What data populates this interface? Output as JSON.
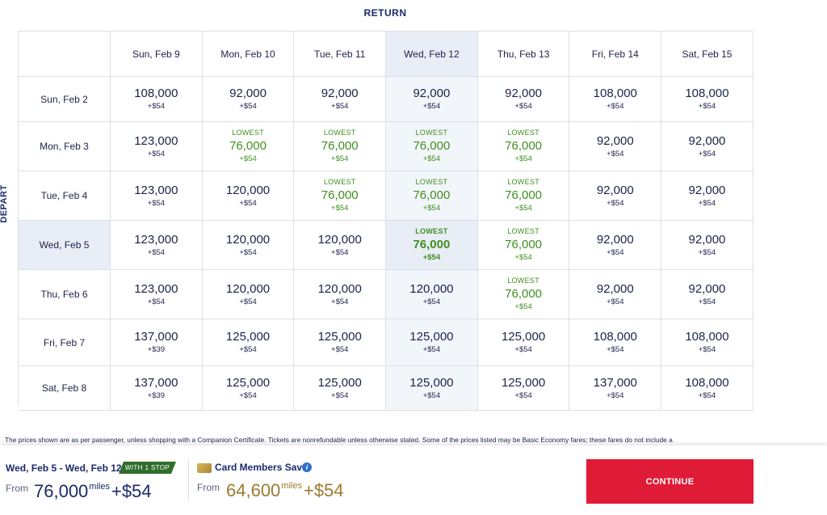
{
  "return_label": "RETURN",
  "depart_label": "DEPART",
  "return_dates": [
    "Sun, Feb 9",
    "Mon, Feb 10",
    "Tue, Feb 11",
    "Wed, Feb 12",
    "Thu, Feb 13",
    "Fri, Feb 14",
    "Sat, Feb 15"
  ],
  "selected_return_index": 3,
  "selected_depart_index": 3,
  "rows": [
    {
      "depart": "Sun, Feb 2",
      "fares": [
        {
          "miles": "108,000",
          "fee": "+$54",
          "lowest": false
        },
        {
          "miles": "92,000",
          "fee": "+$54",
          "lowest": false
        },
        {
          "miles": "92,000",
          "fee": "+$54",
          "lowest": false
        },
        {
          "miles": "92,000",
          "fee": "+$54",
          "lowest": false
        },
        {
          "miles": "92,000",
          "fee": "+$54",
          "lowest": false
        },
        {
          "miles": "108,000",
          "fee": "+$54",
          "lowest": false
        },
        {
          "miles": "108,000",
          "fee": "+$54",
          "lowest": false
        }
      ]
    },
    {
      "depart": "Mon, Feb 3",
      "fares": [
        {
          "miles": "123,000",
          "fee": "+$54",
          "lowest": false
        },
        {
          "miles": "76,000",
          "fee": "+$54",
          "lowest": true
        },
        {
          "miles": "76,000",
          "fee": "+$54",
          "lowest": true
        },
        {
          "miles": "76,000",
          "fee": "+$54",
          "lowest": true
        },
        {
          "miles": "76,000",
          "fee": "+$54",
          "lowest": true
        },
        {
          "miles": "92,000",
          "fee": "+$54",
          "lowest": false
        },
        {
          "miles": "92,000",
          "fee": "+$54",
          "lowest": false
        }
      ]
    },
    {
      "depart": "Tue, Feb 4",
      "fares": [
        {
          "miles": "123,000",
          "fee": "+$54",
          "lowest": false
        },
        {
          "miles": "120,000",
          "fee": "+$54",
          "lowest": false
        },
        {
          "miles": "76,000",
          "fee": "+$54",
          "lowest": true
        },
        {
          "miles": "76,000",
          "fee": "+$54",
          "lowest": true
        },
        {
          "miles": "76,000",
          "fee": "+$54",
          "lowest": true
        },
        {
          "miles": "92,000",
          "fee": "+$54",
          "lowest": false
        },
        {
          "miles": "92,000",
          "fee": "+$54",
          "lowest": false
        }
      ]
    },
    {
      "depart": "Wed, Feb 5",
      "fares": [
        {
          "miles": "123,000",
          "fee": "+$54",
          "lowest": false
        },
        {
          "miles": "120,000",
          "fee": "+$54",
          "lowest": false
        },
        {
          "miles": "120,000",
          "fee": "+$54",
          "lowest": false
        },
        {
          "miles": "76,000",
          "fee": "+$54",
          "lowest": true
        },
        {
          "miles": "76,000",
          "fee": "+$54",
          "lowest": true
        },
        {
          "miles": "92,000",
          "fee": "+$54",
          "lowest": false
        },
        {
          "miles": "92,000",
          "fee": "+$54",
          "lowest": false
        }
      ]
    },
    {
      "depart": "Thu, Feb 6",
      "fares": [
        {
          "miles": "123,000",
          "fee": "+$54",
          "lowest": false
        },
        {
          "miles": "120,000",
          "fee": "+$54",
          "lowest": false
        },
        {
          "miles": "120,000",
          "fee": "+$54",
          "lowest": false
        },
        {
          "miles": "120,000",
          "fee": "+$54",
          "lowest": false
        },
        {
          "miles": "76,000",
          "fee": "+$54",
          "lowest": true
        },
        {
          "miles": "92,000",
          "fee": "+$54",
          "lowest": false
        },
        {
          "miles": "92,000",
          "fee": "+$54",
          "lowest": false
        }
      ]
    },
    {
      "depart": "Fri, Feb 7",
      "fares": [
        {
          "miles": "137,000",
          "fee": "+$39",
          "lowest": false
        },
        {
          "miles": "125,000",
          "fee": "+$54",
          "lowest": false
        },
        {
          "miles": "125,000",
          "fee": "+$54",
          "lowest": false
        },
        {
          "miles": "125,000",
          "fee": "+$54",
          "lowest": false
        },
        {
          "miles": "125,000",
          "fee": "+$54",
          "lowest": false
        },
        {
          "miles": "108,000",
          "fee": "+$54",
          "lowest": false
        },
        {
          "miles": "108,000",
          "fee": "+$54",
          "lowest": false
        }
      ]
    },
    {
      "depart": "Sat, Feb 8",
      "fares": [
        {
          "miles": "137,000",
          "fee": "+$39",
          "lowest": false
        },
        {
          "miles": "125,000",
          "fee": "+$54",
          "lowest": false
        },
        {
          "miles": "125,000",
          "fee": "+$54",
          "lowest": false
        },
        {
          "miles": "125,000",
          "fee": "+$54",
          "lowest": false
        },
        {
          "miles": "125,000",
          "fee": "+$54",
          "lowest": false
        },
        {
          "miles": "137,000",
          "fee": "+$54",
          "lowest": false
        },
        {
          "miles": "108,000",
          "fee": "+$54",
          "lowest": false
        }
      ]
    }
  ],
  "lowest_tag": "LOWEST",
  "disclaimer": "The prices shown are as per passenger, unless shopping with a Companion Certificate. Tickets are nonrefundable unless otherwise stated. Some of the prices listed may be Basic Economy fares; these fares do not include a",
  "footer": {
    "trip_dates": "Wed, Feb 5 - Wed, Feb 12",
    "stops_badge": "WITH 1 STOP",
    "from_label": "From",
    "miles": "76,000",
    "miles_unit": "miles",
    "fee": "+$54",
    "card_title": "Card Members Save",
    "card_from_label": "From",
    "card_miles": "64,600",
    "card_miles_unit": "miles",
    "card_fee": "+$54",
    "info_glyph": "i",
    "continue_label": "CONTINUE"
  },
  "colors": {
    "accent_red": "#e01b37",
    "lowest_green": "#3f8f1f",
    "navy": "#1b2a6b",
    "gold": "#9b7a2f",
    "selected_bg": "#e8edf6"
  }
}
